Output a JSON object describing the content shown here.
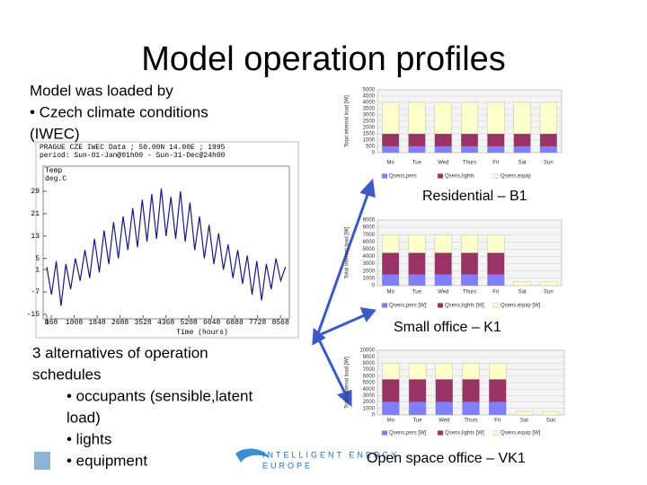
{
  "title": "Model operation profiles",
  "intro": [
    "Model was loaded by",
    "• Czech climate conditions",
    "(IWEC)"
  ],
  "climate_chart": {
    "type": "line",
    "header": [
      "PRAGUE CZE IWEC Data  ; 50.00N 14.00E ; 1995",
      "period: Sun-01-Jan@01h00 - Sun-31-Dec@24h00"
    ],
    "y_label": [
      "Temp",
      "deg.C"
    ],
    "x_label": "Time (hours)",
    "xlim": [
      0,
      8760
    ],
    "xticks": [
      0,
      168,
      1008,
      1848,
      2688,
      3528,
      4368,
      5208,
      6048,
      6888,
      7728,
      8568
    ],
    "ylim": [
      -15,
      29
    ],
    "yticks": [
      29,
      21,
      13,
      5,
      1,
      -7,
      -15
    ],
    "color": "#1a1a7a",
    "x": [
      0,
      175,
      350,
      525,
      700,
      875,
      1050,
      1225,
      1400,
      1575,
      1750,
      1925,
      2100,
      2275,
      2450,
      2625,
      2800,
      2975,
      3150,
      3325,
      3500,
      3675,
      3850,
      4025,
      4200,
      4375,
      4550,
      4725,
      4900,
      5075,
      5250,
      5425,
      5600,
      5775,
      5950,
      6125,
      6300,
      6475,
      6650,
      6825,
      7000,
      7175,
      7350,
      7525,
      7700,
      7875,
      8050,
      8225,
      8400,
      8575,
      8750
    ],
    "values": [
      2,
      -8,
      4,
      -12,
      3,
      -6,
      5,
      -3,
      8,
      -2,
      12,
      0,
      15,
      3,
      18,
      5,
      20,
      8,
      23,
      9,
      26,
      11,
      28,
      12,
      30,
      13,
      27,
      12,
      29,
      11,
      25,
      8,
      20,
      5,
      17,
      3,
      14,
      1,
      10,
      -2,
      8,
      -4,
      6,
      -8,
      4,
      -10,
      3,
      -6,
      5,
      -3,
      2
    ]
  },
  "profiles": [
    {
      "type": "bar",
      "caption": "Residential – B1",
      "y_label": "Total internal load [W]",
      "categories": [
        "Mo",
        "Tue",
        "Wed",
        "Thurs",
        "Fri",
        "Sat",
        "Sun"
      ],
      "ylim": [
        0,
        5000
      ],
      "yticks": [
        0,
        500,
        1000,
        1500,
        2000,
        2500,
        3000,
        3500,
        4000,
        4500,
        5000
      ],
      "series": [
        {
          "name": "Qsens,pers",
          "color": "#8080ff",
          "values": [
            500,
            500,
            500,
            500,
            500,
            500,
            500
          ]
        },
        {
          "name": "Qsens,lights",
          "color": "#993366",
          "values": [
            1000,
            1000,
            1000,
            1000,
            1000,
            1000,
            1000
          ]
        },
        {
          "name": "Qsens,equip",
          "color": "#ffffcc",
          "values": [
            2500,
            2500,
            2500,
            2500,
            2500,
            2500,
            2500
          ]
        }
      ]
    },
    {
      "type": "bar",
      "caption": "Small office – K1",
      "y_label": "Total internal load [W]",
      "categories": [
        "Mo",
        "Tue",
        "Wed",
        "Thurs",
        "Fri",
        "Sat",
        "Sun"
      ],
      "ylim": [
        0,
        9000
      ],
      "yticks": [
        0,
        1000,
        2000,
        3000,
        4000,
        5000,
        6000,
        7000,
        8000,
        9000
      ],
      "series": [
        {
          "name": "Qsens,pers [W]",
          "color": "#8080ff",
          "values": [
            1500,
            1500,
            1500,
            1500,
            1500,
            0,
            0
          ]
        },
        {
          "name": "Qsens,lights [W]",
          "color": "#993366",
          "values": [
            3000,
            3000,
            3000,
            3000,
            3000,
            0,
            0
          ]
        },
        {
          "name": "Qsens,equip [W]",
          "color": "#ffffcc",
          "values": [
            2500,
            2500,
            2500,
            2500,
            2500,
            500,
            500
          ]
        }
      ]
    },
    {
      "type": "bar",
      "caption": "Open space office – VK1",
      "y_label": "Total internal load [W]",
      "categories": [
        "Mo",
        "Tue",
        "Wed",
        "Thurs",
        "Fri",
        "Sat",
        "Sun"
      ],
      "ylim": [
        0,
        10000
      ],
      "yticks": [
        0,
        1000,
        2000,
        3000,
        4000,
        5000,
        6000,
        7000,
        8000,
        9000,
        10000
      ],
      "series": [
        {
          "name": "Qsens,pers [W]",
          "color": "#8080ff",
          "values": [
            2000,
            2000,
            2000,
            2000,
            2000,
            0,
            0
          ]
        },
        {
          "name": "Qsens,lights [W]",
          "color": "#993366",
          "values": [
            3500,
            3500,
            3500,
            3500,
            3500,
            0,
            0
          ]
        },
        {
          "name": "Qsens,equip [W]",
          "color": "#ffffcc",
          "values": [
            2500,
            2500,
            2500,
            2500,
            2500,
            500,
            500
          ]
        }
      ]
    }
  ],
  "schedules": [
    "3 alternatives of  operation",
    "schedules",
    "• occupants (sensible,latent",
    "load)",
    "• lights",
    "• equipment"
  ],
  "logo": [
    "INTELLIGENT ENERGY",
    "EUROPE"
  ]
}
